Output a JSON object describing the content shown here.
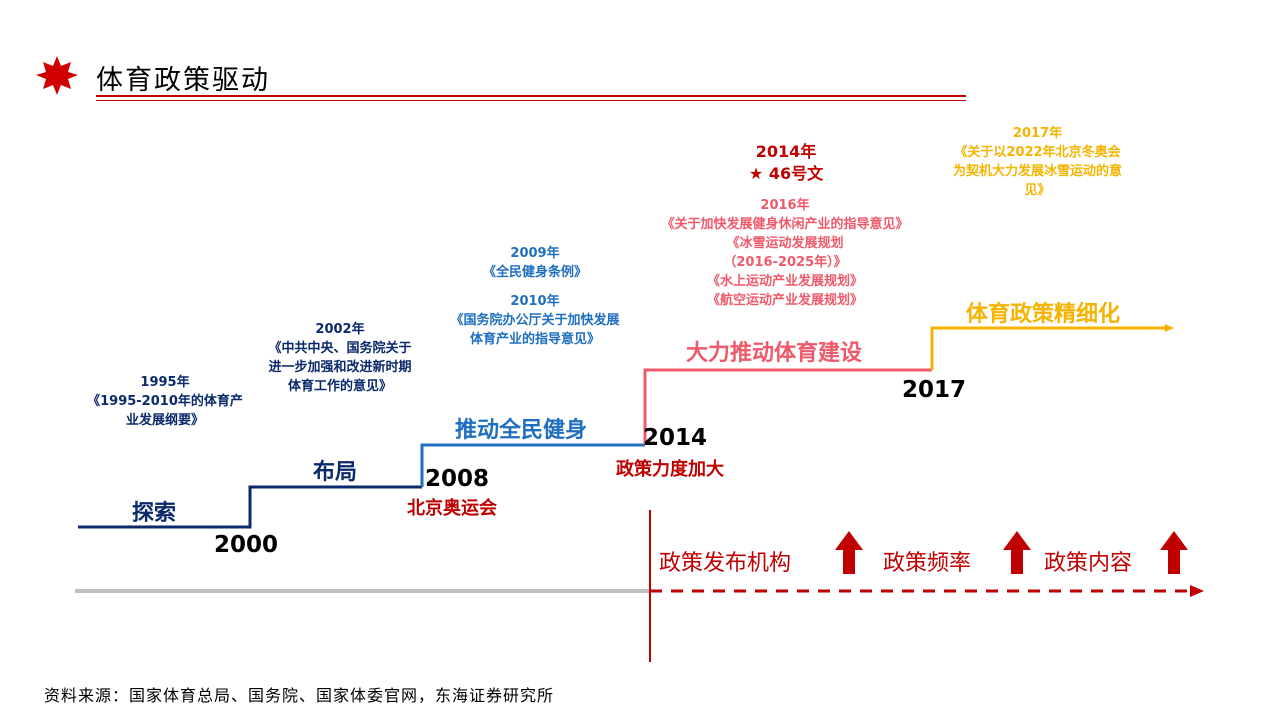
{
  "header": {
    "title": "体育政策驱动"
  },
  "stages": {
    "s1": {
      "label": "探索",
      "year": "2000",
      "policy": [
        "1995年",
        "《1995-2010年的体育产",
        "业发展纲要》"
      ]
    },
    "s2": {
      "label": "布局",
      "year": "2008",
      "event": "北京奥运会",
      "policy": [
        "2002年",
        "《中共中央、国务院关于",
        "进一步加强和改进新时期",
        "体育工作的意见》"
      ]
    },
    "s3": {
      "label": "推动全民健身",
      "year": "2014",
      "event": "政策力度加大",
      "policy": [
        "2009年",
        "《全民健身条例》",
        "",
        "2010年",
        "《国务院办公厅关于加快发展",
        "体育产业的指导意见》"
      ]
    },
    "s4": {
      "label": "大力推动体育建设",
      "year": "2017",
      "highlight": [
        "2014年",
        "★ 46号文"
      ],
      "policy": [
        "2016年",
        "《关于加快发展健身休闲产业的指导意见》",
        "《冰雪运动发展规划",
        "（2016-2025年）》",
        "《水上运动产业发展规划》",
        "《航空运动产业发展规划》"
      ]
    },
    "s5": {
      "label": "体育政策精细化",
      "policy": [
        "2017年",
        "《关于以2022年北京冬奥会",
        "为契机大力发展冰雪运动的意",
        "见》"
      ]
    }
  },
  "changes": [
    "政策发布机构",
    "政策频率",
    "政策内容"
  ],
  "source": "资料来源：国家体育总局、国务院、国家体委官网，东海证券研究所",
  "colors": {
    "navy": "#0b2a6b",
    "blue": "#1f6fc0",
    "pink": "#ef5a6b",
    "gold": "#f5b400",
    "red": "#c00000",
    "gray": "#bfbfbf"
  }
}
